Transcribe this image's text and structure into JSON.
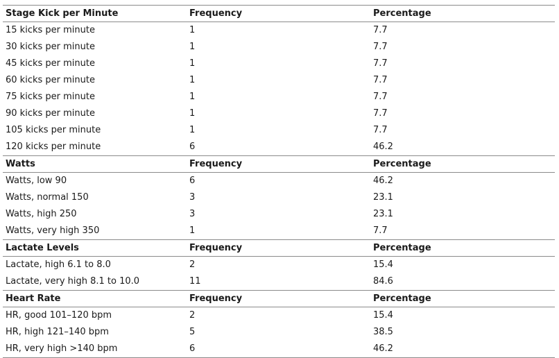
{
  "sections": [
    {
      "header": [
        "Stage Kick per Minute",
        "Frequency",
        "Percentage"
      ],
      "rows": [
        [
          "15 kicks per minute",
          "1",
          "7.7"
        ],
        [
          "30 kicks per minute",
          "1",
          "7.7"
        ],
        [
          "45 kicks per minute",
          "1",
          "7.7"
        ],
        [
          "60 kicks per minute",
          "1",
          "7.7"
        ],
        [
          "75 kicks per minute",
          "1",
          "7.7"
        ],
        [
          "90 kicks per minute",
          "1",
          "7.7"
        ],
        [
          "105 kicks per minute",
          "1",
          "7.7"
        ],
        [
          "120 kicks per minute",
          "6",
          "46.2"
        ]
      ]
    },
    {
      "header": [
        "Watts",
        "Frequency",
        "Percentage"
      ],
      "rows": [
        [
          "Watts, low 90",
          "6",
          "46.2"
        ],
        [
          "Watts, normal 150",
          "3",
          "23.1"
        ],
        [
          "Watts, high 250",
          "3",
          "23.1"
        ],
        [
          "Watts, very high 350",
          "1",
          "7.7"
        ]
      ]
    },
    {
      "header": [
        "Lactate Levels",
        "Frequency",
        "Percentage"
      ],
      "rows": [
        [
          "Lactate, high 6.1 to 8.0",
          "2",
          "15.4"
        ],
        [
          "Lactate, very high 8.1 to 10.0",
          "11",
          "84.6"
        ]
      ]
    },
    {
      "header": [
        "Heart Rate",
        "Frequency",
        "Percentage"
      ],
      "rows": [
        [
          "HR, good 101–120 bpm",
          "2",
          "15.4"
        ],
        [
          "HR, high 121–140 bpm",
          "5",
          "38.5"
        ],
        [
          "HR, very high >140 bpm",
          "6",
          "46.2"
        ]
      ]
    }
  ]
}
